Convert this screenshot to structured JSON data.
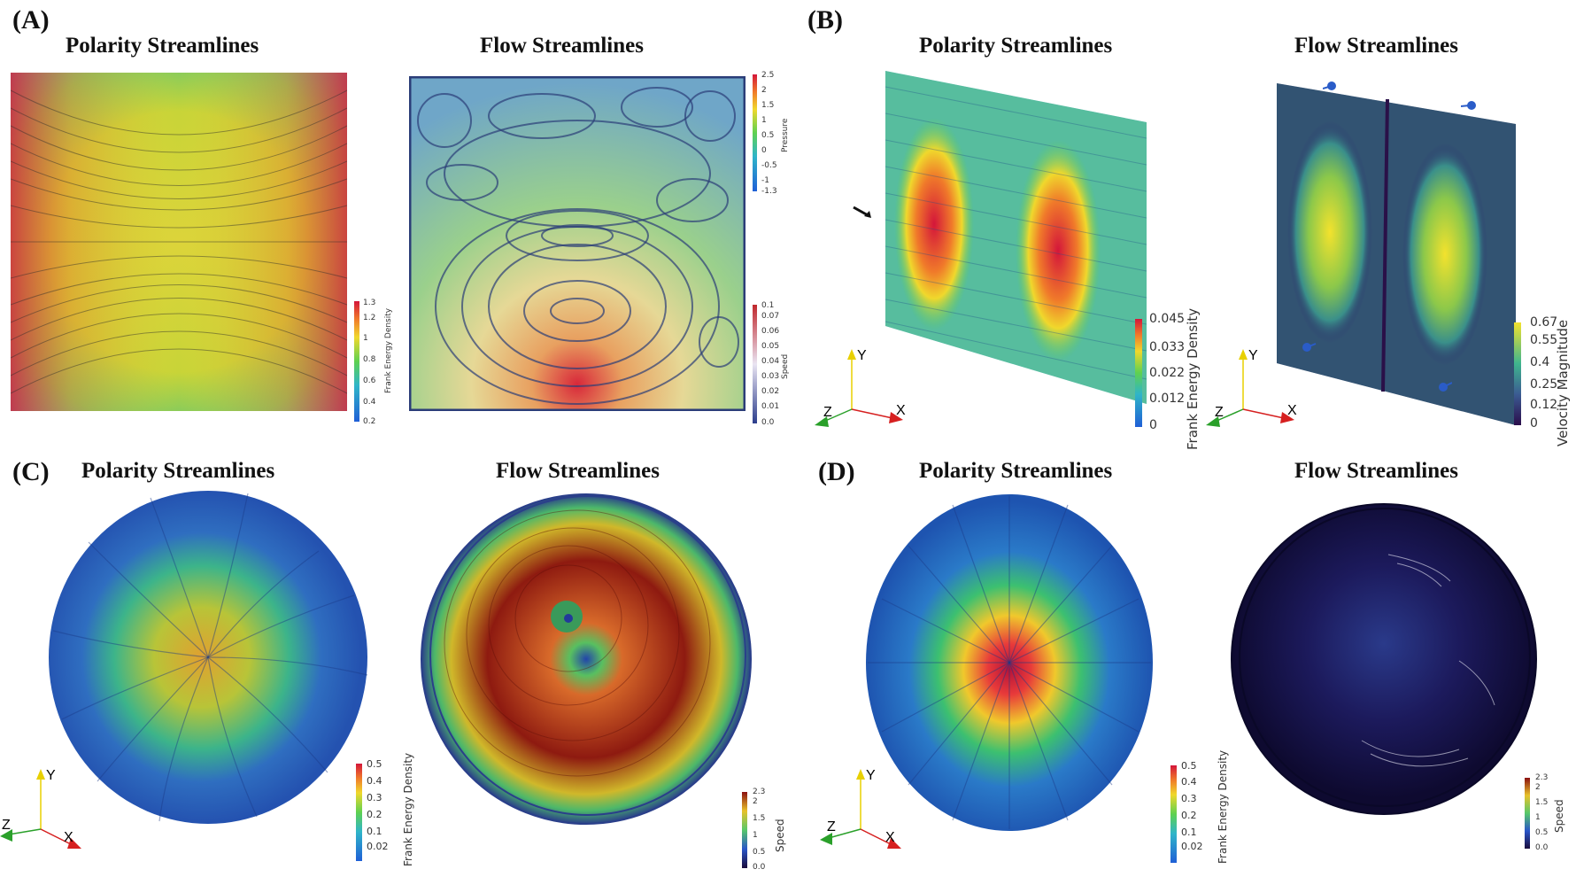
{
  "panels": {
    "A": {
      "letter": "(A)",
      "left_title": "Polarity Streamlines",
      "right_title": "Flow Streamlines"
    },
    "B": {
      "letter": "(B)",
      "left_title": "Polarity Streamlines",
      "right_title": "Flow Streamlines"
    },
    "C": {
      "letter": "(C)",
      "left_title": "Polarity Streamlines",
      "right_title": "Flow Streamlines"
    },
    "D": {
      "letter": "(D)",
      "left_title": "Polarity Streamlines",
      "right_title": "Flow Streamlines"
    }
  },
  "colorbars": {
    "A_frank": {
      "title": "Frank Energy Density",
      "ticks": [
        "1.3",
        "1.2",
        "1",
        "0.8",
        "0.6",
        "0.4",
        "0.2"
      ],
      "palette": "jet"
    },
    "A_pressure": {
      "title": "Pressure",
      "ticks": [
        "2.5",
        "2",
        "1.5",
        "1",
        "0.5",
        "0",
        "-0.5",
        "-1",
        "-1.3"
      ],
      "palette": "jet"
    },
    "A_speed": {
      "title": "Speed",
      "ticks": [
        "0.1",
        "0.07",
        "0.06",
        "0.05",
        "0.04",
        "0.03",
        "0.02",
        "0.01",
        "0.0"
      ],
      "palette": "blue-red"
    },
    "B_frank": {
      "title": "Frank Energy Density",
      "ticks": [
        "0.045",
        "0.033",
        "0.022",
        "0.012",
        "0"
      ],
      "palette": "jet"
    },
    "B_velocity": {
      "title": "Velocity Magnitude",
      "ticks": [
        "0.67",
        "0.55",
        "0.4",
        "0.25",
        "0.12",
        "0"
      ],
      "palette": "viridis"
    },
    "C_frank": {
      "title": "Frank Energy Density",
      "ticks": [
        "0.5",
        "0.4",
        "0.3",
        "0.2",
        "0.1",
        "0.02"
      ],
      "palette": "jet"
    },
    "C_speed": {
      "title": "Speed",
      "ticks": [
        "2.3",
        "2",
        "1.5",
        "1",
        "0.5",
        "0.0"
      ],
      "palette": "turbo-dark"
    },
    "D_frank": {
      "title": "Frank Energy Density",
      "ticks": [
        "0.5",
        "0.4",
        "0.3",
        "0.2",
        "0.1",
        "0.02"
      ],
      "palette": "jet"
    },
    "D_speed": {
      "title": "Speed",
      "ticks": [
        "2.3",
        "2",
        "1.5",
        "1",
        "0.5",
        "0.0"
      ],
      "palette": "turbo-dark"
    }
  },
  "axis_labels": {
    "x": "X",
    "y": "Y",
    "z": "Z"
  },
  "colors": {
    "axis_x": "#d62020",
    "axis_y": "#e8d000",
    "axis_z": "#2aa02a"
  }
}
